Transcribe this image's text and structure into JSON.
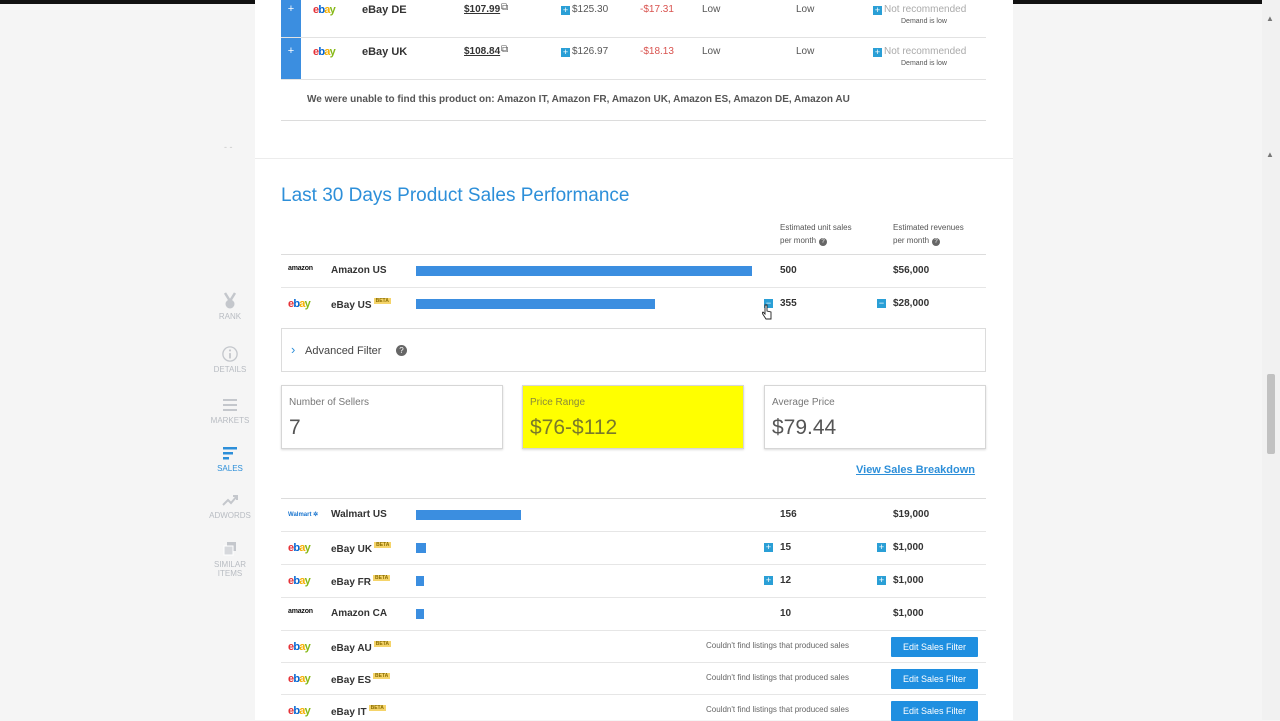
{
  "sidebar": {
    "items": [
      {
        "label": "RANK",
        "icon": "medal-icon"
      },
      {
        "label": "DETAILS",
        "icon": "info-icon"
      },
      {
        "label": "MARKETS",
        "icon": "list-icon"
      },
      {
        "label": "SALES",
        "icon": "sales-icon",
        "active": true
      },
      {
        "label": "ADWORDS",
        "icon": "trend-icon"
      },
      {
        "label": "SIMILAR ITEMS",
        "icon": "copy-icon"
      }
    ],
    "dash": "- -"
  },
  "markets_top": [
    {
      "plus": "+",
      "logo": "ebay",
      "name": "eBay DE",
      "price": "$107.99",
      "box_price": "$125.30",
      "diff": "-$17.31",
      "col1": "Low",
      "col2": "Low",
      "rec": "Not recommended",
      "rec_sub": "Demand is low"
    },
    {
      "plus": "+",
      "logo": "ebay",
      "name": "eBay UK",
      "price": "$108.84",
      "box_price": "$126.97",
      "diff": "-$18.13",
      "col1": "Low",
      "col2": "Low",
      "rec": "Not recommended",
      "rec_sub": "Demand is low"
    }
  ],
  "unable_text": "We were unable to find this product on: Amazon IT, Amazon FR, Amazon UK, Amazon ES, Amazon DE, Amazon AU",
  "performance": {
    "title": "Last 30 Days Product Sales Performance",
    "col_units_1": "Estimated unit sales",
    "col_units_2": "per month",
    "col_rev_1": "Estimated revenues",
    "col_rev_2": "per month"
  },
  "top_rows": [
    {
      "logo": "amazon",
      "name": "Amazon US",
      "beta": "",
      "bar": 1.0,
      "units": "500",
      "rev": "$56,000",
      "unit_btn": "",
      "rev_btn": ""
    },
    {
      "logo": "ebay",
      "name": "eBay US",
      "beta": "BETA",
      "bar": 0.71,
      "units": "355",
      "rev": "$28,000",
      "unit_btn": "−",
      "rev_btn": "−"
    }
  ],
  "advanced_filter": {
    "label": "Advanced Filter",
    "help": "?"
  },
  "cards": {
    "sellers_label": "Number of Sellers",
    "sellers_value": "7",
    "range_label": "Price Range",
    "range_value": "$76-$112",
    "avg_label": "Average Price",
    "avg_value": "$79.44"
  },
  "view_breakdown": "View Sales Breakdown",
  "bottom_rows": [
    {
      "logo": "walmart",
      "name": "Walmart US",
      "beta": "",
      "bar": 0.312,
      "units": "156",
      "rev": "$19,000",
      "unit_btn": "",
      "rev_btn": ""
    },
    {
      "logo": "ebay",
      "name": "eBay UK",
      "beta": "BETA",
      "bar": 0.03,
      "units": "15",
      "rev": "$1,000",
      "unit_btn": "+",
      "rev_btn": "+"
    },
    {
      "logo": "ebay",
      "name": "eBay FR",
      "beta": "BETA",
      "bar": 0.024,
      "units": "12",
      "rev": "$1,000",
      "unit_btn": "+",
      "rev_btn": "+"
    },
    {
      "logo": "amazon",
      "name": "Amazon CA",
      "beta": "",
      "bar": 0.02,
      "units": "10",
      "rev": "$1,000",
      "unit_btn": "",
      "rev_btn": ""
    }
  ],
  "nofound_rows": [
    {
      "logo": "ebay",
      "name": "eBay AU",
      "beta": "BETA",
      "msg": "Couldn't find listings that produced sales",
      "btn": "Edit Sales Filter"
    },
    {
      "logo": "ebay",
      "name": "eBay ES",
      "beta": "BETA",
      "msg": "Couldn't find listings that produced sales",
      "btn": "Edit Sales Filter"
    },
    {
      "logo": "ebay",
      "name": "eBay IT",
      "beta": "BETA",
      "msg": "Couldn't find listings that produced sales",
      "btn": "Edit Sales Filter"
    }
  ],
  "logo_text": {
    "amazon": "amazon",
    "walmart": "Walmart ✲"
  },
  "colors": {
    "accent": "#2d8fd9",
    "bar": "#3b8ee0",
    "highlight": "#ffff00",
    "negative": "#d9534f"
  }
}
